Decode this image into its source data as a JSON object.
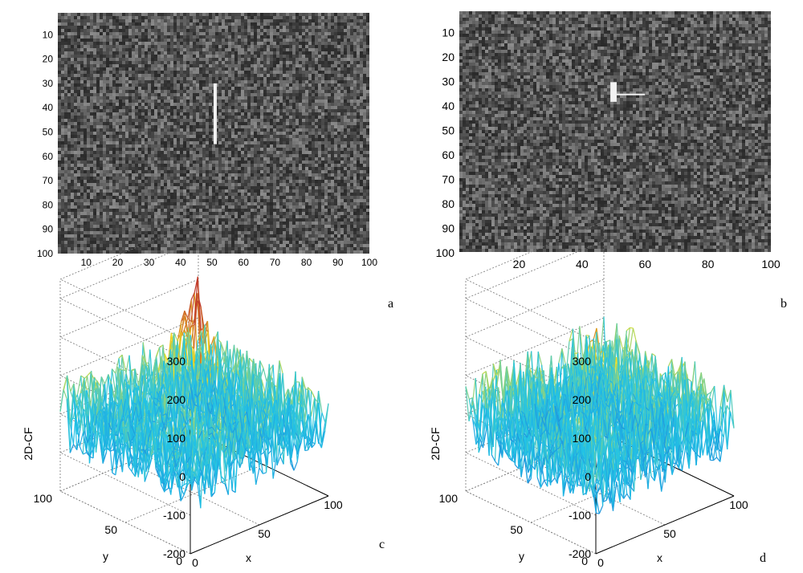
{
  "colors": {
    "noise_dark": "#2a2a2a",
    "noise_light": "#8c8c8c",
    "target": "#f2f2f2",
    "surface_low": "#1f5fd0",
    "surface_mid": "#22c4e6",
    "surface_high": "#f2e020",
    "surface_peak": "#c0392b",
    "grid": "#777777"
  },
  "chart_data": [
    {
      "id": "a",
      "type": "heatmap",
      "title": "",
      "panel_label": "a",
      "description_kind": "noisy grayscale image with vertical line target",
      "xlim": [
        1,
        100
      ],
      "ylim": [
        1,
        100
      ],
      "x_ticks": [
        "10",
        "20",
        "30",
        "40",
        "50",
        "60",
        "70",
        "80",
        "90",
        "100"
      ],
      "y_ticks": [
        "10",
        "20",
        "30",
        "40",
        "50",
        "60",
        "70",
        "80",
        "90",
        "100"
      ],
      "target": {
        "shape": "vertical-line",
        "x": 51,
        "y_start": 30,
        "y_end": 55
      }
    },
    {
      "id": "b",
      "type": "heatmap",
      "title": "",
      "panel_label": "b",
      "description_kind": "noisy grayscale image with T-shaped target",
      "xlim": [
        1,
        100
      ],
      "ylim": [
        1,
        100
      ],
      "x_ticks": [
        "20",
        "40",
        "60",
        "80",
        "100"
      ],
      "y_ticks": [
        "10",
        "20",
        "30",
        "40",
        "50",
        "60",
        "70",
        "80",
        "90",
        "100"
      ],
      "target": {
        "shape": "T",
        "bar_x": [
          49,
          51
        ],
        "bar_y": [
          30,
          38
        ],
        "arm_x": [
          51,
          60
        ],
        "arm_y": 35
      }
    },
    {
      "id": "c",
      "type": "surface",
      "panel_label": "c",
      "zlabel": "2D-CF",
      "xlabel": "x",
      "ylabel": "y",
      "zlim": [
        -200,
        350
      ],
      "z_ticks": [
        "300",
        "200",
        "100",
        "0",
        "-100",
        "-200"
      ],
      "x_ticks": [
        "0",
        "50",
        "100"
      ],
      "y_ticks": [
        "100",
        "50",
        "0"
      ],
      "peak": {
        "x": 50,
        "y": 50,
        "z": 340
      },
      "noise_amplitude": 100
    },
    {
      "id": "d",
      "type": "surface",
      "panel_label": "d",
      "zlabel": "2D-CF",
      "xlabel": "x",
      "ylabel": "y",
      "zlim": [
        -200,
        350
      ],
      "z_ticks": [
        "300",
        "200",
        "100",
        "0",
        "-100",
        "-200"
      ],
      "x_ticks": [
        "0",
        "50",
        "100"
      ],
      "y_ticks": [
        "100",
        "50",
        "0"
      ],
      "peak": {
        "x": 50,
        "y": 50,
        "z": 130
      },
      "noise_amplitude": 110
    }
  ]
}
